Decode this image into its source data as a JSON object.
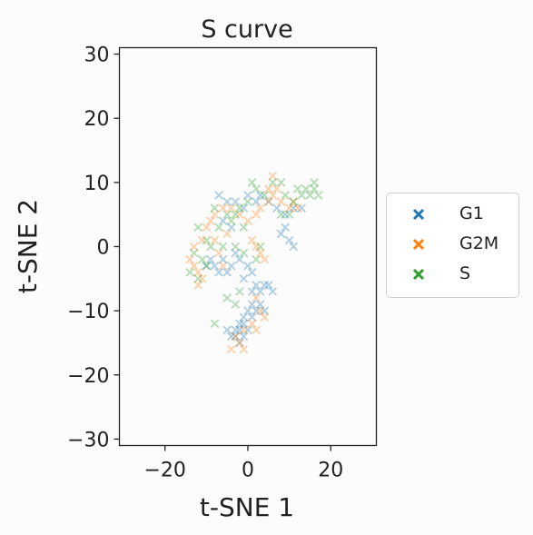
{
  "chart_data": {
    "type": "scatter",
    "title": "S curve",
    "xlabel": "t-SNE 1",
    "ylabel": "t-SNE 2",
    "xlim": [
      -31,
      31
    ],
    "ylim": [
      -31,
      31
    ],
    "xticks": [
      -20,
      0,
      20
    ],
    "yticks": [
      -30,
      -20,
      -10,
      0,
      10,
      20,
      30
    ],
    "marker": "x",
    "grid": false,
    "legend_position": "right, outside plot",
    "series": [
      {
        "name": "G1",
        "color": "#1f77b4",
        "points": [
          [
            -7,
            8
          ],
          [
            -5,
            7
          ],
          [
            -6,
            4
          ],
          [
            -4,
            3
          ],
          [
            -3,
            7
          ],
          [
            -1,
            6
          ],
          [
            0,
            8
          ],
          [
            2,
            7
          ],
          [
            3,
            8
          ],
          [
            5,
            7
          ],
          [
            7,
            6
          ],
          [
            9,
            5
          ],
          [
            11,
            6
          ],
          [
            13,
            6
          ],
          [
            9,
            3
          ],
          [
            10,
            1
          ],
          [
            11,
            0
          ],
          [
            8,
            2
          ],
          [
            -9,
            -2
          ],
          [
            -8,
            -3
          ],
          [
            -6,
            -2
          ],
          [
            -5,
            -4
          ],
          [
            -4,
            -3
          ],
          [
            -7,
            -4
          ],
          [
            -3,
            -1
          ],
          [
            -2,
            -2
          ],
          [
            -10,
            -3
          ],
          [
            0,
            -3
          ],
          [
            1,
            -4
          ],
          [
            -1,
            -5
          ],
          [
            2,
            -6
          ],
          [
            1,
            -7
          ],
          [
            3,
            -7
          ],
          [
            4,
            -6
          ],
          [
            5,
            -6
          ],
          [
            6,
            -7
          ],
          [
            3,
            -9
          ],
          [
            4,
            -10
          ],
          [
            2,
            -10
          ],
          [
            1,
            -9
          ],
          [
            0,
            -10
          ],
          [
            1,
            -11
          ],
          [
            -1,
            -11
          ],
          [
            -1,
            -12
          ],
          [
            -2,
            -12
          ],
          [
            -3,
            -13
          ],
          [
            -4,
            -14
          ],
          [
            -2,
            -13
          ],
          [
            -3,
            -14
          ],
          [
            0,
            -13
          ],
          [
            -2,
            -15
          ],
          [
            -1,
            -14
          ],
          [
            -5,
            -13
          ]
        ]
      },
      {
        "name": "G2M",
        "color": "#ff7f0e",
        "points": [
          [
            -14,
            -2
          ],
          [
            -13,
            -3
          ],
          [
            -12,
            -4
          ],
          [
            -11,
            -5
          ],
          [
            -12,
            -6
          ],
          [
            -13,
            0
          ],
          [
            -11,
            1
          ],
          [
            -10,
            3
          ],
          [
            -9,
            4
          ],
          [
            -8,
            5
          ],
          [
            -6,
            6
          ],
          [
            -4,
            6
          ],
          [
            -2,
            5
          ],
          [
            0,
            4
          ],
          [
            2,
            5
          ],
          [
            3,
            6
          ],
          [
            5,
            7
          ],
          [
            6,
            8
          ],
          [
            7,
            9
          ],
          [
            8,
            7
          ],
          [
            6,
            11
          ],
          [
            5,
            9
          ],
          [
            10,
            6
          ],
          [
            11,
            7
          ],
          [
            12,
            6
          ],
          [
            1,
            1
          ],
          [
            2,
            0
          ],
          [
            3,
            -1
          ],
          [
            4,
            -2
          ],
          [
            2,
            -8
          ],
          [
            3,
            -10
          ],
          [
            4,
            -11
          ],
          [
            1,
            -12
          ],
          [
            2,
            -13
          ],
          [
            -1,
            -13
          ],
          [
            -3,
            -14
          ],
          [
            -2,
            -15
          ],
          [
            -4,
            -16
          ],
          [
            -1,
            -16
          ],
          [
            -7,
            -1
          ],
          [
            -8,
            1
          ],
          [
            -5,
            2
          ],
          [
            -6,
            -3
          ]
        ]
      },
      {
        "name": "S",
        "color": "#2ca02c",
        "points": [
          [
            -13,
            -1
          ],
          [
            -12,
            3
          ],
          [
            -14,
            -4
          ],
          [
            -11,
            -2
          ],
          [
            -9,
            0
          ],
          [
            -7,
            3
          ],
          [
            -8,
            6
          ],
          [
            -5,
            5
          ],
          [
            -3,
            5
          ],
          [
            -2,
            6
          ],
          [
            -4,
            4
          ],
          [
            -1,
            3
          ],
          [
            0,
            7
          ],
          [
            1,
            10
          ],
          [
            2,
            9
          ],
          [
            4,
            8
          ],
          [
            6,
            10
          ],
          [
            8,
            10
          ],
          [
            9,
            8
          ],
          [
            11,
            7
          ],
          [
            12,
            9
          ],
          [
            13,
            8
          ],
          [
            14,
            9
          ],
          [
            15,
            8
          ],
          [
            16,
            9
          ],
          [
            17,
            8
          ],
          [
            16,
            10
          ],
          [
            10,
            5
          ],
          [
            8,
            5
          ],
          [
            -3,
            0
          ],
          [
            -1,
            -1
          ],
          [
            2,
            -2
          ],
          [
            3,
            0
          ],
          [
            -5,
            -8
          ],
          [
            -3,
            -9
          ],
          [
            -2,
            -7
          ],
          [
            -8,
            -12
          ],
          [
            -10,
            -3
          ],
          [
            -12,
            -5
          ],
          [
            -10,
            1
          ],
          [
            -6,
            0
          ]
        ]
      }
    ]
  }
}
